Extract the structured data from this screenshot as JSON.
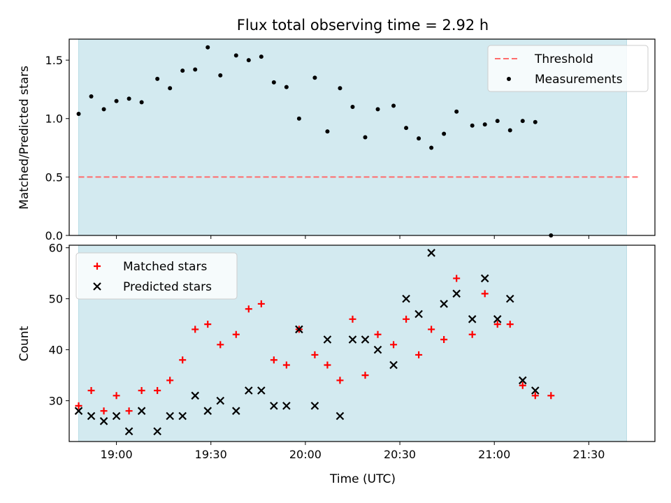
{
  "figure": {
    "title": "Flux total observing time = 2.92 h",
    "xlabel": "Time (UTC)",
    "x_ticks": [
      "19:00",
      "19:30",
      "20:00",
      "20:30",
      "21:00",
      "21:30"
    ],
    "shade_color": "#d3eaf0"
  },
  "chart_data": [
    {
      "type": "scatter",
      "ylabel": "Matched/Predicted stars",
      "xlim": [
        "18:45",
        "21:51"
      ],
      "ylim": [
        0,
        1.68
      ],
      "yticks": [
        "0.0",
        "0.5",
        "1.0",
        "1.5"
      ],
      "observing_window": [
        "18:48",
        "21:42"
      ],
      "threshold": {
        "name": "Threshold",
        "value": 0.5,
        "color": "#ff6b6b",
        "x_range": [
          "18:48",
          "21:46"
        ]
      },
      "legend": {
        "location": "upper right",
        "entries": [
          "Threshold",
          "Measurements"
        ]
      },
      "series": [
        {
          "name": "Measurements",
          "color": "#000000",
          "marker": "dot",
          "points": [
            [
              "18:48",
              1.04
            ],
            [
              "18:52",
              1.19
            ],
            [
              "18:56",
              1.08
            ],
            [
              "19:00",
              1.15
            ],
            [
              "19:04",
              1.17
            ],
            [
              "19:08",
              1.14
            ],
            [
              "19:13",
              1.34
            ],
            [
              "19:17",
              1.26
            ],
            [
              "19:21",
              1.41
            ],
            [
              "19:25",
              1.42
            ],
            [
              "19:29",
              1.61
            ],
            [
              "19:33",
              1.37
            ],
            [
              "19:38",
              1.54
            ],
            [
              "19:42",
              1.5
            ],
            [
              "19:46",
              1.53
            ],
            [
              "19:50",
              1.31
            ],
            [
              "19:54",
              1.27
            ],
            [
              "19:58",
              1.0
            ],
            [
              "20:03",
              1.35
            ],
            [
              "20:07",
              0.89
            ],
            [
              "20:11",
              1.26
            ],
            [
              "20:15",
              1.1
            ],
            [
              "20:19",
              0.84
            ],
            [
              "20:23",
              1.08
            ],
            [
              "20:28",
              1.11
            ],
            [
              "20:32",
              0.92
            ],
            [
              "20:36",
              0.83
            ],
            [
              "20:40",
              0.75
            ],
            [
              "20:44",
              0.87
            ],
            [
              "20:48",
              1.06
            ],
            [
              "20:53",
              0.94
            ],
            [
              "20:57",
              0.95
            ],
            [
              "21:01",
              0.98
            ],
            [
              "21:05",
              0.9
            ],
            [
              "21:09",
              0.98
            ],
            [
              "21:13",
              0.97
            ],
            [
              "21:18",
              0.0
            ]
          ]
        }
      ]
    },
    {
      "type": "scatter",
      "ylabel": "Count",
      "xlim": [
        "18:45",
        "21:51"
      ],
      "ylim": [
        22,
        60.5
      ],
      "yticks": [
        "30",
        "40",
        "50",
        "60"
      ],
      "observing_window": [
        "18:48",
        "21:42"
      ],
      "legend": {
        "location": "upper left",
        "entries": [
          "Matched stars",
          "Predicted stars"
        ]
      },
      "series": [
        {
          "name": "Matched stars",
          "color": "#ff0000",
          "marker": "plus",
          "points": [
            [
              "18:48",
              29
            ],
            [
              "18:52",
              32
            ],
            [
              "18:56",
              28
            ],
            [
              "19:00",
              31
            ],
            [
              "19:04",
              28
            ],
            [
              "19:08",
              32
            ],
            [
              "19:13",
              32
            ],
            [
              "19:17",
              34
            ],
            [
              "19:21",
              38
            ],
            [
              "19:25",
              44
            ],
            [
              "19:29",
              45
            ],
            [
              "19:33",
              41
            ],
            [
              "19:38",
              43
            ],
            [
              "19:42",
              48
            ],
            [
              "19:46",
              49
            ],
            [
              "19:50",
              38
            ],
            [
              "19:54",
              37
            ],
            [
              "19:58",
              44
            ],
            [
              "20:03",
              39
            ],
            [
              "20:07",
              37
            ],
            [
              "20:11",
              34
            ],
            [
              "20:15",
              46
            ],
            [
              "20:19",
              35
            ],
            [
              "20:23",
              43
            ],
            [
              "20:28",
              41
            ],
            [
              "20:32",
              46
            ],
            [
              "20:36",
              39
            ],
            [
              "20:40",
              44
            ],
            [
              "20:44",
              42
            ],
            [
              "20:48",
              54
            ],
            [
              "20:53",
              43
            ],
            [
              "20:57",
              51
            ],
            [
              "21:01",
              45
            ],
            [
              "21:05",
              45
            ],
            [
              "21:09",
              33
            ],
            [
              "21:13",
              31
            ],
            [
              "21:18",
              31
            ]
          ]
        },
        {
          "name": "Predicted stars",
          "color": "#000000",
          "marker": "x",
          "points": [
            [
              "18:48",
              28
            ],
            [
              "18:52",
              27
            ],
            [
              "18:56",
              26
            ],
            [
              "19:00",
              27
            ],
            [
              "19:04",
              24
            ],
            [
              "19:08",
              28
            ],
            [
              "19:13",
              24
            ],
            [
              "19:17",
              27
            ],
            [
              "19:21",
              27
            ],
            [
              "19:25",
              31
            ],
            [
              "19:29",
              28
            ],
            [
              "19:33",
              30
            ],
            [
              "19:38",
              28
            ],
            [
              "19:42",
              32
            ],
            [
              "19:46",
              32
            ],
            [
              "19:50",
              29
            ],
            [
              "19:54",
              29
            ],
            [
              "19:58",
              44
            ],
            [
              "20:03",
              29
            ],
            [
              "20:07",
              42
            ],
            [
              "20:11",
              27
            ],
            [
              "20:15",
              42
            ],
            [
              "20:19",
              42
            ],
            [
              "20:23",
              40
            ],
            [
              "20:28",
              37
            ],
            [
              "20:32",
              50
            ],
            [
              "20:36",
              47
            ],
            [
              "20:40",
              59
            ],
            [
              "20:44",
              49
            ],
            [
              "20:48",
              51
            ],
            [
              "20:53",
              46
            ],
            [
              "20:57",
              54
            ],
            [
              "21:01",
              46
            ],
            [
              "21:05",
              50
            ],
            [
              "21:09",
              34
            ],
            [
              "21:13",
              32
            ]
          ]
        }
      ]
    }
  ]
}
